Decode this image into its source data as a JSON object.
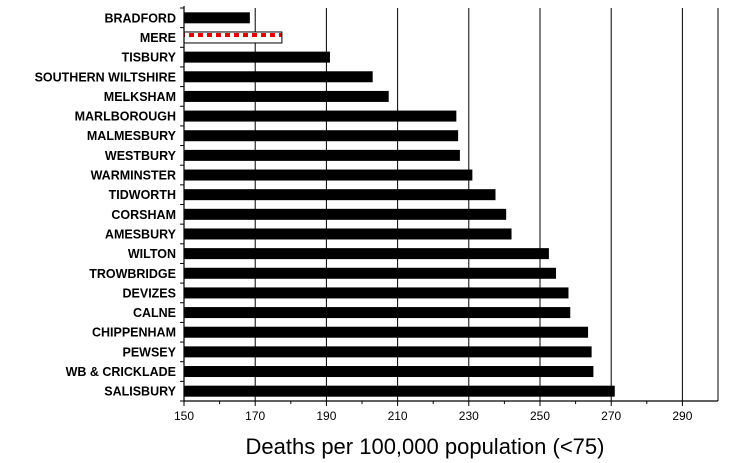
{
  "chart_data": {
    "type": "bar",
    "orientation": "horizontal",
    "categories": [
      "BRADFORD",
      "MERE",
      "TISBURY",
      "SOUTHERN WILTSHIRE",
      "MELKSHAM",
      "MARLBOROUGH",
      "MALMESBURY",
      "WESTBURY",
      "WARMINSTER",
      "TIDWORTH",
      "CORSHAM",
      "AMESBURY",
      "WILTON",
      "TROWBRIDGE",
      "DEVIZES",
      "CALNE",
      "CHIPPENHAM",
      "PEWSEY",
      "WB & CRICKLADE",
      "SALISBURY"
    ],
    "values": [
      168.5,
      177.5,
      191,
      203,
      207.5,
      226.5,
      227,
      227.5,
      231,
      237.5,
      240.5,
      242,
      252.5,
      254.5,
      258,
      258.5,
      263.5,
      264.5,
      265,
      271
    ],
    "highlight_category": "MERE",
    "xlabel": "Deaths per 100,000 population (<75)",
    "xlim": [
      150,
      300
    ],
    "xticks": [
      150,
      170,
      190,
      210,
      230,
      250,
      270,
      290
    ],
    "grid": "vertical",
    "colors": {
      "bar": "#000000",
      "highlight_fill": "#ffffff",
      "highlight_pattern": "#e00000",
      "highlight_border": "#000000",
      "grid": "#000000"
    }
  }
}
